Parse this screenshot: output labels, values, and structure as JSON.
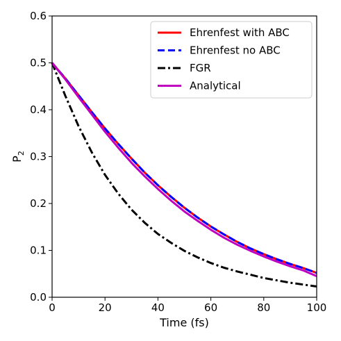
{
  "chart_data": {
    "type": "line",
    "xlabel": "Time (fs)",
    "ylabel": "P",
    "ylabel_subscript": "2",
    "xlim": [
      0,
      100
    ],
    "ylim": [
      0,
      0.6
    ],
    "xticks": [
      0,
      20,
      40,
      60,
      80,
      100
    ],
    "yticks": [
      0.0,
      0.1,
      0.2,
      0.3,
      0.4,
      0.5,
      0.6
    ],
    "xtick_labels": [
      "0",
      "20",
      "40",
      "60",
      "80",
      "100"
    ],
    "ytick_labels": [
      "0.0",
      "0.1",
      "0.2",
      "0.3",
      "0.4",
      "0.5",
      "0.6"
    ],
    "grid": false,
    "legend_position": "top-right",
    "x": [
      0,
      5,
      10,
      15,
      20,
      25,
      30,
      35,
      40,
      45,
      50,
      55,
      60,
      65,
      70,
      75,
      80,
      85,
      90,
      95,
      100
    ],
    "series": [
      {
        "name": "Ehrenfest with ABC",
        "color": "#ff0000",
        "style": "solid",
        "values": [
          0.5,
          0.467,
          0.431,
          0.395,
          0.36,
          0.327,
          0.296,
          0.266,
          0.239,
          0.214,
          0.191,
          0.17,
          0.151,
          0.134,
          0.118,
          0.104,
          0.092,
          0.081,
          0.071,
          0.062,
          0.052
        ]
      },
      {
        "name": "Ehrenfest no ABC",
        "color": "#0000ff",
        "style": "dashed",
        "values": [
          0.5,
          0.467,
          0.431,
          0.395,
          0.36,
          0.327,
          0.296,
          0.266,
          0.239,
          0.214,
          0.191,
          0.17,
          0.151,
          0.134,
          0.118,
          0.104,
          0.092,
          0.081,
          0.071,
          0.062,
          0.052
        ]
      },
      {
        "name": "FGR",
        "color": "#000000",
        "style": "dashdot",
        "values": [
          0.5,
          0.43,
          0.365,
          0.309,
          0.261,
          0.221,
          0.187,
          0.159,
          0.135,
          0.116,
          0.099,
          0.085,
          0.073,
          0.063,
          0.055,
          0.048,
          0.041,
          0.036,
          0.031,
          0.027,
          0.023
        ]
      },
      {
        "name": "Analytical",
        "color": "#bf00bf",
        "style": "solid",
        "values": [
          0.5,
          0.465,
          0.427,
          0.39,
          0.353,
          0.319,
          0.287,
          0.258,
          0.231,
          0.206,
          0.183,
          0.163,
          0.144,
          0.127,
          0.112,
          0.099,
          0.087,
          0.076,
          0.066,
          0.057,
          0.045
        ]
      }
    ]
  }
}
